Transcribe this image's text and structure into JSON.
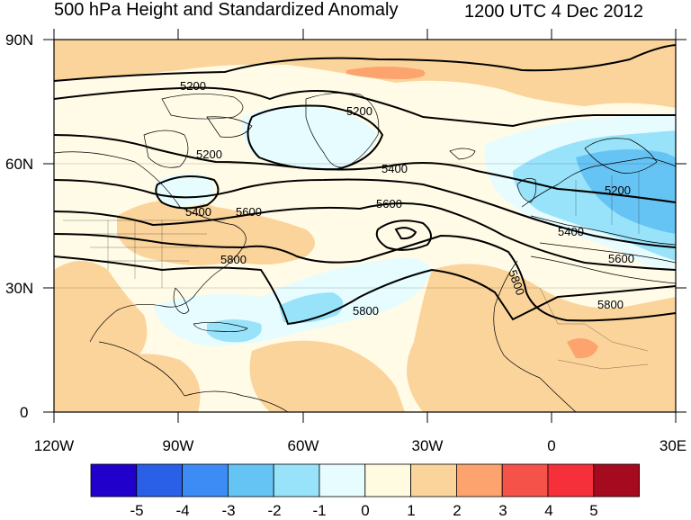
{
  "header": {
    "title": "500 hPa Height and Standardized Anomaly",
    "valid_time": "1200 UTC 4 Dec 2012"
  },
  "axes": {
    "lat_ticks": [
      "90N",
      "60N",
      "30N",
      "0"
    ],
    "lon_ticks": [
      "120W",
      "90W",
      "60W",
      "30W",
      "0",
      "30E"
    ]
  },
  "contour_labels": [
    "5200",
    "5200",
    "5200",
    "5400",
    "5400",
    "5600",
    "5600",
    "5800",
    "5800",
    "5800",
    "5200",
    "5400",
    "5600",
    "5800"
  ],
  "colorbar": {
    "labels": [
      "-5",
      "-4",
      "-3",
      "-2",
      "-1",
      "0",
      "1",
      "2",
      "3",
      "4",
      "5"
    ],
    "colors": [
      "#2200cc",
      "#2a5fe8",
      "#3d8cf5",
      "#66c4f5",
      "#99e3fa",
      "#e6fcff",
      "#fffbe0",
      "#fad49b",
      "#fca36e",
      "#f5534a",
      "#f5303b",
      "#a50a1e"
    ]
  },
  "map_colors": {
    "ocean_neutral": "#fffbe6",
    "pos1": "#fad49b",
    "pos2": "#fca36e",
    "neg1": "#e6fcff",
    "neg2": "#99e3fa",
    "neg3": "#66c4f5"
  }
}
